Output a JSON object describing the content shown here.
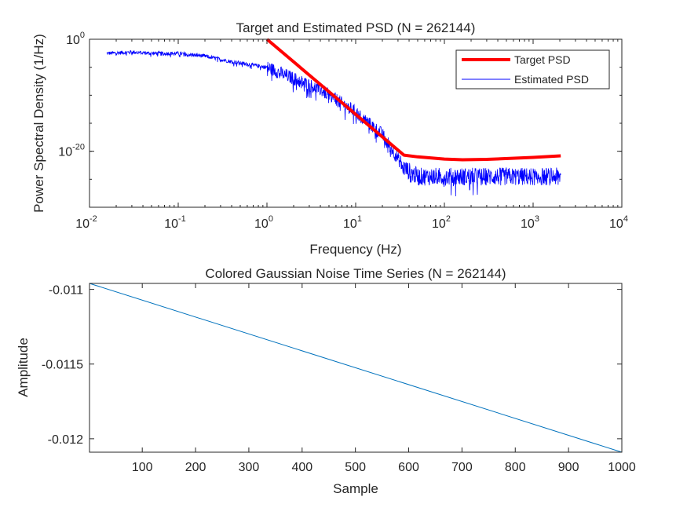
{
  "chart_data": [
    {
      "type": "line",
      "title": "Target and Estimated PSD (N = 262144)",
      "xlabel": "Frequency (Hz)",
      "ylabel": "Power Spectral Density (1/Hz)",
      "xscale": "log",
      "yscale": "log",
      "xlim": [
        0.01,
        10000
      ],
      "ylim": [
        1e-30,
        1
      ],
      "x_ticks": [
        {
          "base": "10",
          "exp": "-2"
        },
        {
          "base": "10",
          "exp": "-1"
        },
        {
          "base": "10",
          "exp": "0"
        },
        {
          "base": "10",
          "exp": "1"
        },
        {
          "base": "10",
          "exp": "2"
        },
        {
          "base": "10",
          "exp": "3"
        },
        {
          "base": "10",
          "exp": "4"
        }
      ],
      "y_ticks": [
        {
          "base": "10",
          "exp": "0"
        },
        {
          "base": "10",
          "exp": "-20"
        }
      ],
      "grid": false,
      "legend_position": "top-right",
      "series": [
        {
          "name": "Target PSD",
          "color": "#ff0000",
          "x": [
            1,
            35,
            50,
            100,
            160,
            300,
            1000,
            2048
          ],
          "y": [
            1,
            2e-21,
            1e-21,
            4e-22,
            3e-22,
            3.5e-22,
            8e-22,
            1.5e-21
          ]
        },
        {
          "name": "Estimated PSD",
          "color": "#0000ff",
          "x": [
            0.0156,
            0.031,
            0.05,
            0.1,
            0.2,
            0.4,
            1,
            2,
            4,
            10,
            20,
            35,
            50,
            100,
            300,
            1000,
            2048
          ],
          "y": [
            0.003,
            0.005,
            0.003,
            0.003,
            0.001,
            0.0001,
            1e-05,
            1e-07,
            1e-09,
            1e-13,
            1e-17,
            1e-23,
            3e-25,
            3e-25,
            3e-25,
            3e-25,
            3e-25
          ]
        }
      ]
    },
    {
      "type": "line",
      "title": "Colored Gaussian Noise Time Series (N = 262144)",
      "xlabel": "Sample",
      "ylabel": "Amplitude",
      "xlim": [
        1,
        1000
      ],
      "ylim": [
        -0.01209,
        -0.01096
      ],
      "x_ticks": [
        "100",
        "200",
        "300",
        "400",
        "500",
        "600",
        "700",
        "800",
        "900",
        "1000"
      ],
      "y_ticks": [
        "-0.011",
        "-0.0115",
        "-0.012"
      ],
      "grid": false,
      "series": [
        {
          "color": "#0072bd",
          "x": [
            1,
            1000
          ],
          "y": [
            -0.01096,
            -0.01209
          ]
        }
      ]
    }
  ]
}
